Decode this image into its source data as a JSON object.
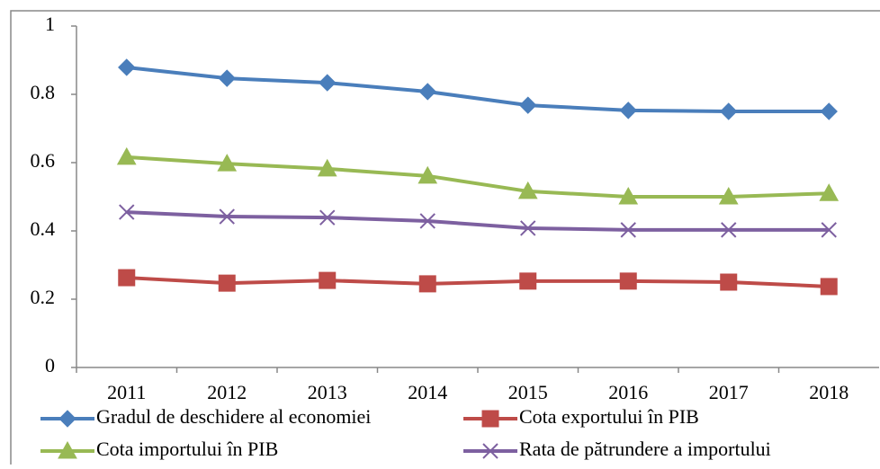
{
  "chart_data": {
    "type": "line",
    "categories": [
      "2011",
      "2012",
      "2013",
      "2014",
      "2015",
      "2016",
      "2017",
      "2018"
    ],
    "series": [
      {
        "name": "Gradul de deschidere al economiei",
        "color": "#4a7ebb",
        "marker": "diamond",
        "values": [
          0.879,
          0.847,
          0.834,
          0.808,
          0.768,
          0.753,
          0.75,
          0.75
        ]
      },
      {
        "name": "Cota exportului în PIB",
        "color": "#be4b48",
        "marker": "square",
        "values": [
          0.263,
          0.247,
          0.255,
          0.245,
          0.253,
          0.253,
          0.25,
          0.237
        ]
      },
      {
        "name": "Cota importului în PIB",
        "color": "#98b954",
        "marker": "triangle",
        "values": [
          0.616,
          0.597,
          0.582,
          0.561,
          0.516,
          0.5,
          0.5,
          0.51
        ]
      },
      {
        "name": "Rata de pătrundere a importului",
        "color": "#7d60a0",
        "marker": "x",
        "values": [
          0.455,
          0.442,
          0.439,
          0.429,
          0.408,
          0.403,
          0.403,
          0.403
        ]
      }
    ],
    "ylim": [
      0,
      1
    ],
    "yticks": [
      0,
      0.2,
      0.4,
      0.6,
      0.8,
      1
    ],
    "grid": false
  }
}
